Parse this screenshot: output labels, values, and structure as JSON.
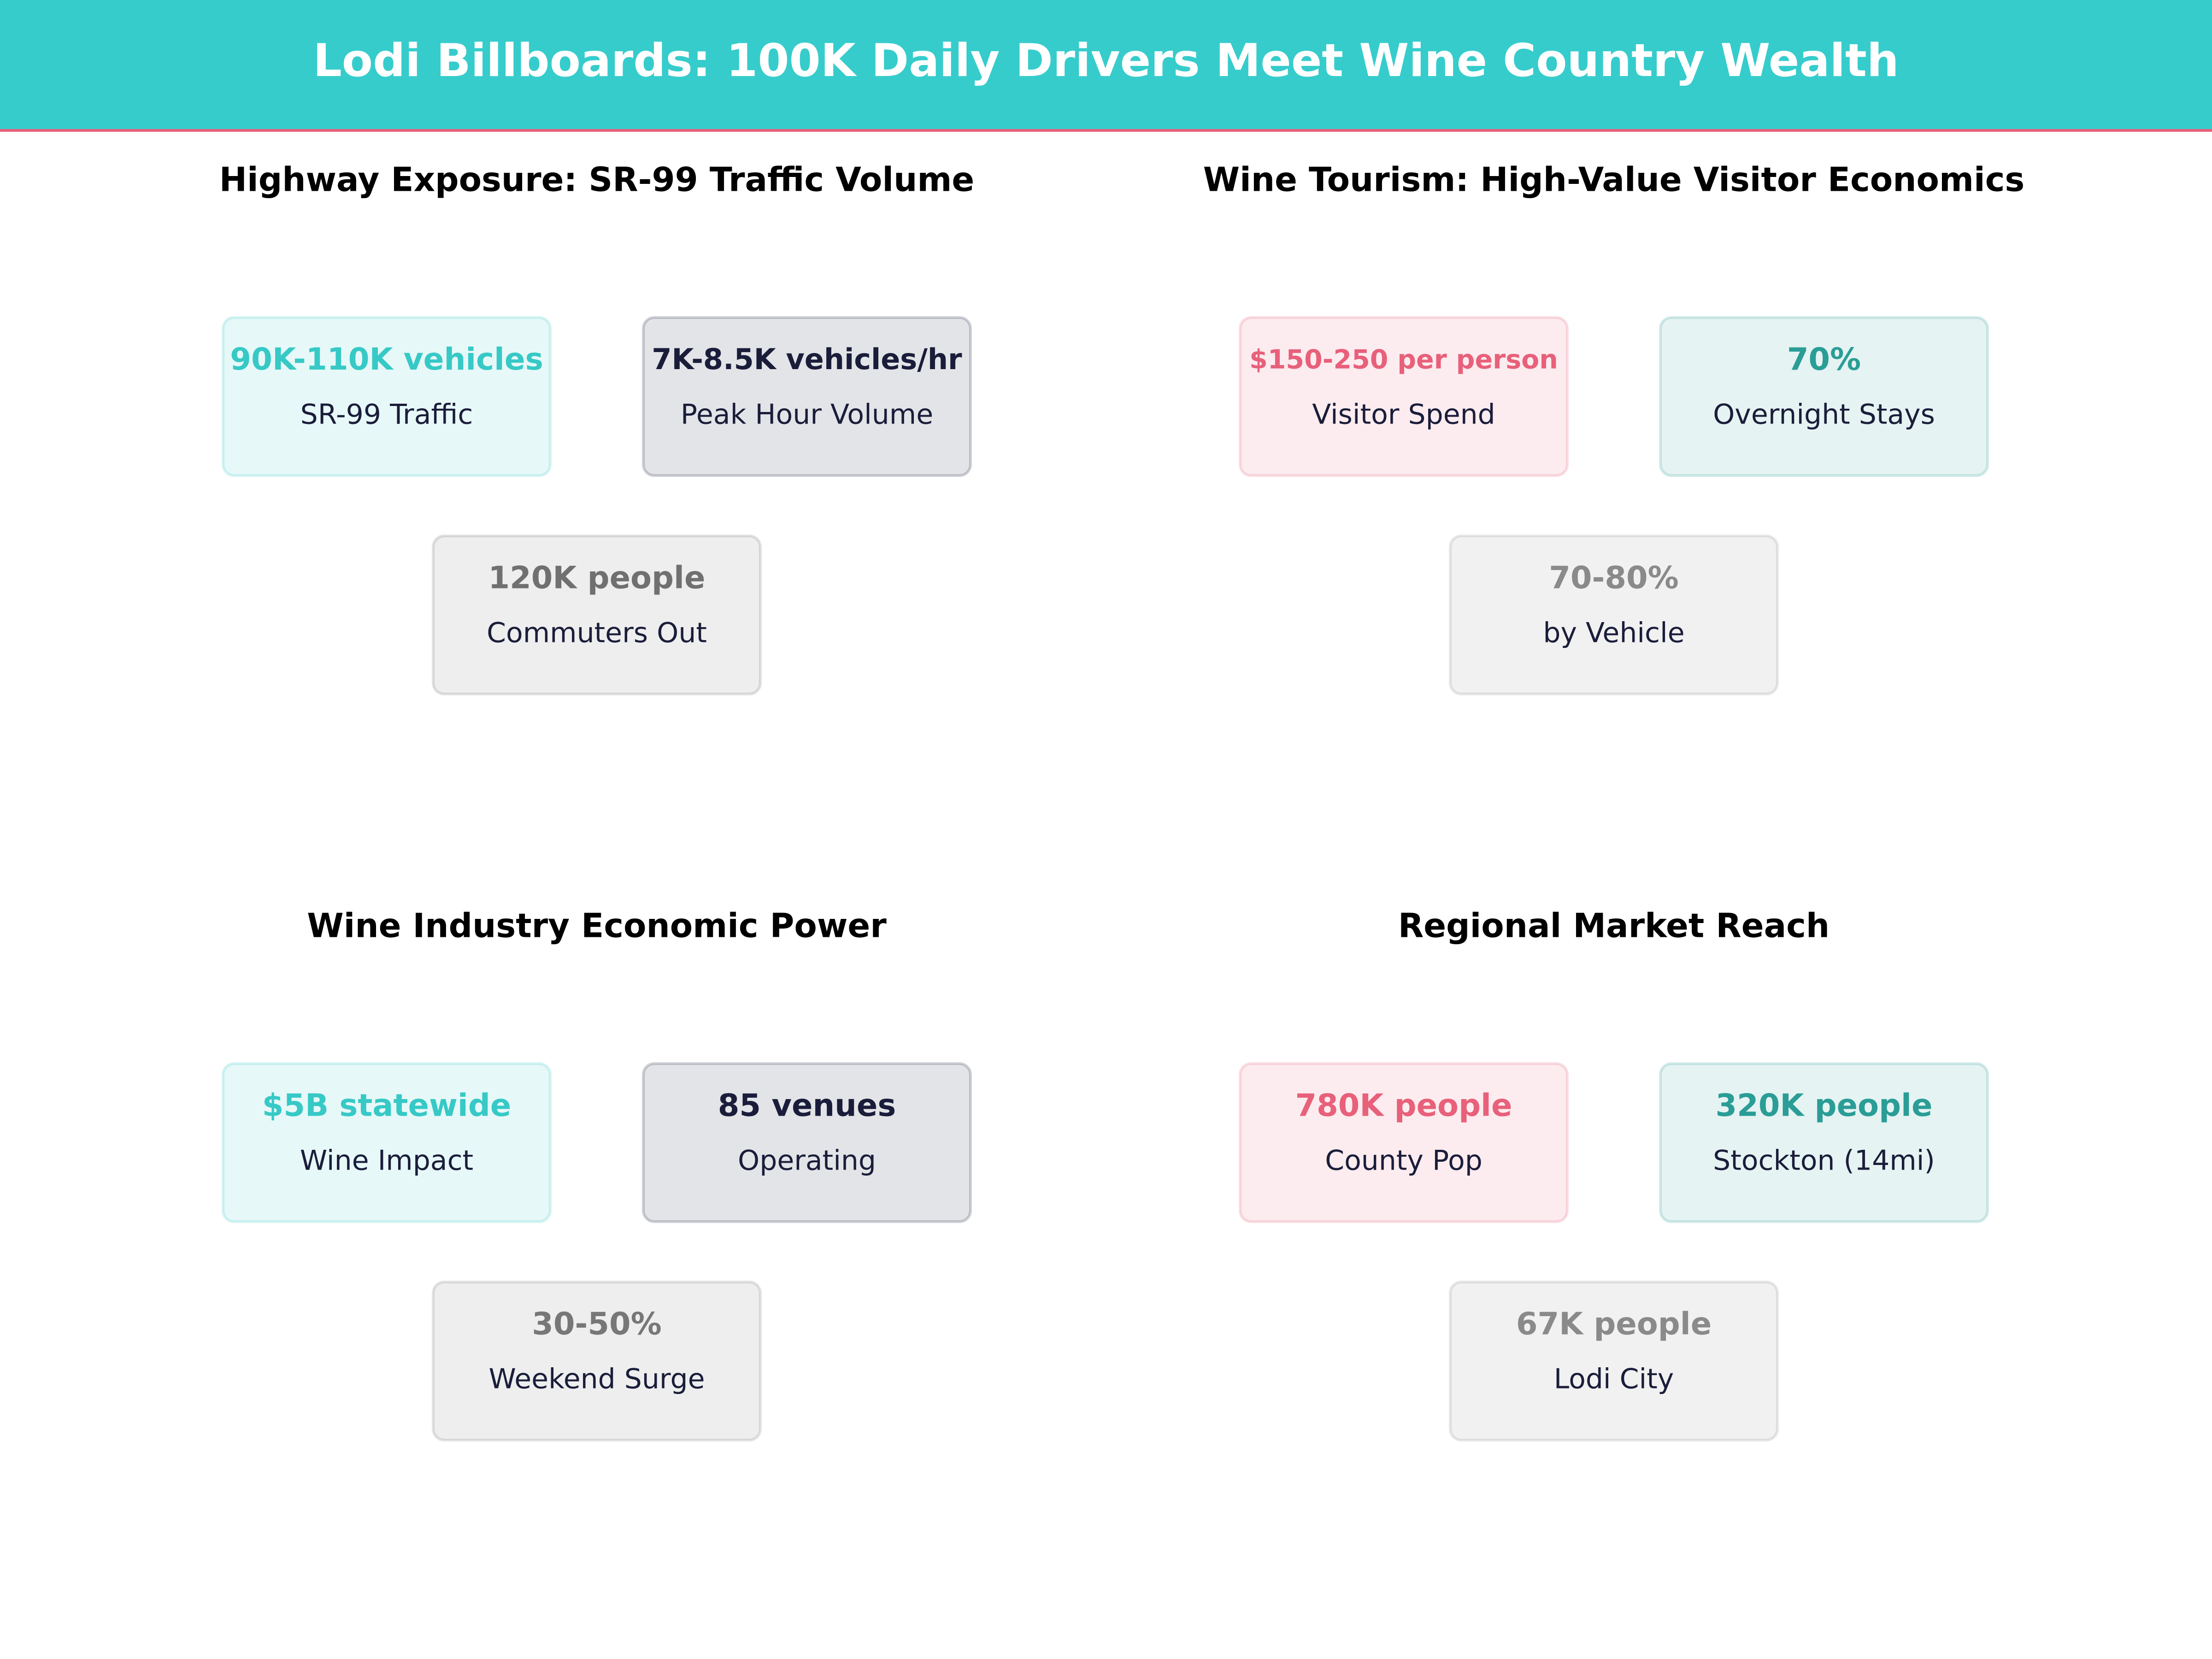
{
  "header": {
    "title": "Lodi Billboards: 100K Daily Drivers Meet Wine Country Wealth"
  },
  "panels": [
    {
      "title": "Highway Exposure: SR-99 Traffic Volume",
      "cards": [
        {
          "value": "90K-110K vehicles",
          "label": "SR-99 Traffic",
          "color": "#36c9c6"
        },
        {
          "value": "7K-8.5K vehicles/hr",
          "label": "Peak Hour Volume",
          "color": "#1a1d3a"
        },
        {
          "value": "120K people",
          "label": "Commuters Out",
          "color": "#707070"
        }
      ]
    },
    {
      "title": "Wine Tourism: High-Value Visitor Economics",
      "cards": [
        {
          "value": "$150-250 per person",
          "label": "Visitor Spend",
          "color": "#e8607a"
        },
        {
          "value": "70%",
          "label": "Overnight Stays",
          "color": "#2a9d96"
        },
        {
          "value": "70-80%",
          "label": "by Vehicle",
          "color": "#8a8a8a"
        }
      ]
    },
    {
      "title": "Wine Industry Economic Power",
      "cards": [
        {
          "value": "$5B statewide",
          "label": "Wine Impact",
          "color": "#36c9c6"
        },
        {
          "value": "85 venues",
          "label": "Operating",
          "color": "#1a1d3a"
        },
        {
          "value": "30-50%",
          "label": "Weekend Surge",
          "color": "#777777"
        }
      ]
    },
    {
      "title": "Regional Market Reach",
      "cards": [
        {
          "value": "780K people",
          "label": "County Pop",
          "color": "#e8607a"
        },
        {
          "value": "320K people",
          "label": "Stockton (14mi)",
          "color": "#2a9d96"
        },
        {
          "value": "67K people",
          "label": "Lodi City",
          "color": "#8a8a8a"
        }
      ]
    }
  ]
}
